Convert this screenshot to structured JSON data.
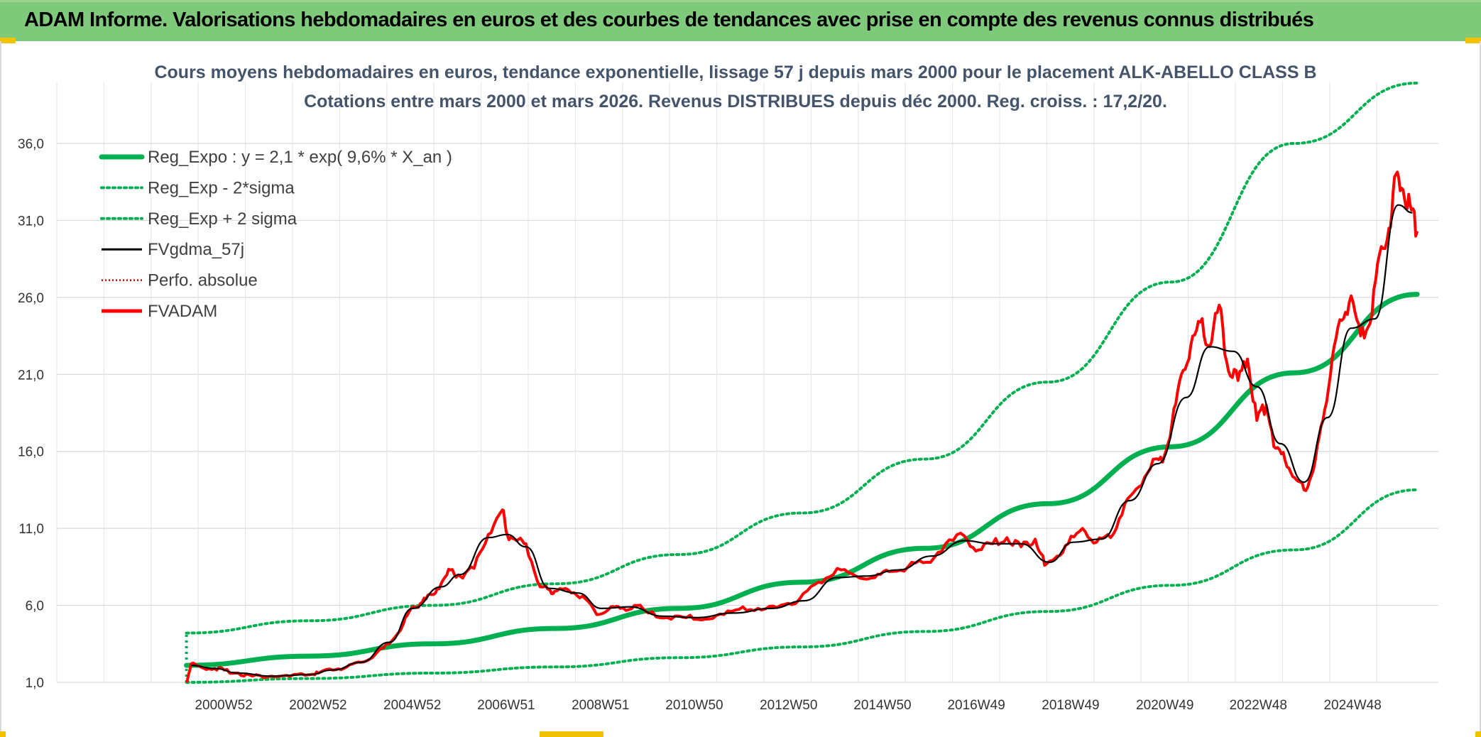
{
  "banner": {
    "title": "ADAM Informe. Valorisations hebdomadaires en euros et des courbes de tendances avec prise en compte des revenus connus distribués"
  },
  "colors": {
    "banner": "#7fc97a",
    "trend": "#00b050",
    "price": "#ff0000",
    "smooth": "#000000",
    "perf": "#c00000"
  },
  "chart_data": {
    "type": "line",
    "title": [
      "Cours moyens hebdomadaires en euros, tendance exponentielle, lissage 57 j depuis mars 2000 pour le placement ALK-ABELLO CLASS B",
      "Cotations entre mars 2000 et mars 2026. Revenus DISTRIBUES depuis déc 2000. Reg. croiss. : 17,2/20."
    ],
    "xlabel": "",
    "ylabel": "",
    "ylim": [
      1,
      40
    ],
    "xlim": [
      1997.45,
      2026.75
    ],
    "y_ticks": [
      "1,0",
      "6,0",
      "11,0",
      "16,0",
      "21,0",
      "26,0",
      "31,0",
      "36,0"
    ],
    "y_tick_values": [
      1,
      6,
      11,
      16,
      21,
      26,
      31,
      36
    ],
    "x_ticks": [
      "2000W52",
      "2002W52",
      "2004W52",
      "2006W51",
      "2008W51",
      "2010W50",
      "2012W50",
      "2014W50",
      "2016W49",
      "2018W49",
      "2020W49",
      "2022W48",
      "2024W48"
    ],
    "x_tick_values": [
      2000.99,
      2002.99,
      2004.99,
      2006.98,
      2008.98,
      2010.97,
      2012.97,
      2014.96,
      2016.95,
      2018.95,
      2020.95,
      2022.93,
      2024.93
    ],
    "grid": true,
    "legend_position": "top-left",
    "legend": [
      {
        "label": "Reg_Expo : y = 2,1 * exp( 9,6% *  X_an )",
        "style": "trend"
      },
      {
        "label": "Reg_Exp - 2*sigma",
        "style": "band"
      },
      {
        "label": "Reg_Exp + 2 sigma",
        "style": "band"
      },
      {
        "label": "FVgdma_57j",
        "style": "smooth"
      },
      {
        "label": "Perfo. absolue",
        "style": "perf"
      },
      {
        "label": "FVADAM",
        "style": "price"
      }
    ],
    "series": [
      {
        "name": "FVADAM",
        "x": [
          2000.2,
          2000.3,
          2000.5,
          2000.8,
          2001.0,
          2001.3,
          2001.6,
          2002.0,
          2002.4,
          2002.8,
          2003.0,
          2003.3,
          2003.6,
          2003.9,
          2004.2,
          2004.5,
          2004.8,
          2005.0,
          2005.2,
          2005.4,
          2005.6,
          2005.8,
          2006.0,
          2006.3,
          2006.6,
          2006.9,
          2007.0,
          2007.2,
          2007.4,
          2007.7,
          2007.9,
          2008.0,
          2008.3,
          2008.6,
          2008.9,
          2009.2,
          2009.4,
          2009.7,
          2010.0,
          2010.4,
          2010.8,
          2011.2,
          2011.6,
          2012.0,
          2012.4,
          2012.8,
          2013.2,
          2013.6,
          2014.0,
          2014.4,
          2014.8,
          2015.1,
          2015.5,
          2015.9,
          2016.3,
          2016.7,
          2017.0,
          2017.3,
          2017.6,
          2017.9,
          2018.2,
          2018.4,
          2018.6,
          2018.9,
          2019.2,
          2019.5,
          2019.8,
          2020.1,
          2020.4,
          2020.7,
          2020.9,
          2021.1,
          2021.3,
          2021.5,
          2021.7,
          2021.9,
          2022.1,
          2022.3,
          2022.5,
          2022.7,
          2022.9,
          2023.1,
          2023.3,
          2023.5,
          2023.7,
          2023.9,
          2024.1,
          2024.3,
          2024.5,
          2024.7,
          2024.9,
          2025.1,
          2025.3,
          2025.5,
          2025.7,
          2025.85,
          2026.0,
          2026.15,
          2026.3
        ],
        "values": [
          1.0,
          2.2,
          2.0,
          1.9,
          1.8,
          1.6,
          1.4,
          1.4,
          1.4,
          1.5,
          1.6,
          1.8,
          2.0,
          2.3,
          2.8,
          3.5,
          4.8,
          5.9,
          6.2,
          6.7,
          7.4,
          8.3,
          7.9,
          8.4,
          10.6,
          12.2,
          10.6,
          10.2,
          10.0,
          7.2,
          7.0,
          6.9,
          7.0,
          6.6,
          5.4,
          5.9,
          5.8,
          6.0,
          5.5,
          5.2,
          5.2,
          5.1,
          5.4,
          5.9,
          5.7,
          6.0,
          6.4,
          7.5,
          8.4,
          7.9,
          7.8,
          8.2,
          8.5,
          8.8,
          10.0,
          10.5,
          9.6,
          10.0,
          10.4,
          9.8,
          10.3,
          8.6,
          9.0,
          10.0,
          11.0,
          10.1,
          10.4,
          12.6,
          13.7,
          15.5,
          15.3,
          17.8,
          21.0,
          22.9,
          24.4,
          22.8,
          25.5,
          21.2,
          20.6,
          22.0,
          18.0,
          19.0,
          16.2,
          15.4,
          14.3,
          13.5,
          14.8,
          18.0,
          22.1,
          24.5,
          26.1,
          23.5,
          24.3,
          28.8,
          30.5,
          34.0,
          33.0,
          32.0,
          30.3
        ]
      },
      {
        "name": "FVgdma_57j",
        "x": [
          2000.3,
          2000.8,
          2001.3,
          2002.0,
          2002.8,
          2003.3,
          2003.9,
          2004.5,
          2005.0,
          2005.6,
          2006.0,
          2006.6,
          2007.0,
          2007.4,
          2007.9,
          2008.5,
          2009.0,
          2009.6,
          2010.3,
          2011.0,
          2011.8,
          2012.6,
          2013.3,
          2014.0,
          2014.6,
          2015.3,
          2016.0,
          2016.7,
          2017.3,
          2017.9,
          2018.5,
          2019.0,
          2019.6,
          2020.2,
          2020.8,
          2021.4,
          2021.9,
          2022.4,
          2022.9,
          2023.4,
          2023.9,
          2024.4,
          2024.9,
          2025.4,
          2025.9,
          2026.2
        ],
        "values": [
          2.1,
          1.9,
          1.6,
          1.4,
          1.5,
          1.8,
          2.3,
          3.6,
          5.8,
          7.2,
          8.0,
          10.4,
          10.6,
          9.8,
          7.1,
          6.8,
          5.8,
          5.9,
          5.3,
          5.2,
          5.5,
          5.8,
          6.3,
          7.8,
          7.9,
          8.3,
          9.2,
          10.2,
          10.0,
          10.0,
          8.8,
          10.1,
          10.3,
          12.8,
          15.2,
          19.5,
          22.8,
          22.5,
          20.2,
          16.5,
          14.0,
          18.2,
          24.0,
          24.6,
          32.0,
          31.5
        ]
      },
      {
        "name": "Reg_Expo : y = 2,1 * exp( 9,6% *  X_an )",
        "formula": {
          "a": 2.1,
          "b": 0.096,
          "x0": 2000.2,
          "x1": 2026.3
        },
        "values": [
          2.1,
          2.7,
          3.5,
          4.5,
          5.8,
          7.5,
          9.7,
          12.6,
          16.3,
          21.1,
          26.2
        ]
      },
      {
        "name": "Reg_Exp - 2*sigma",
        "values": [
          1.0,
          1.25,
          1.6,
          2.0,
          2.6,
          3.3,
          4.3,
          5.6,
          7.3,
          9.6,
          13.5
        ]
      },
      {
        "name": "Reg_Exp + 2 sigma",
        "values": [
          4.2,
          5.0,
          6.0,
          7.4,
          9.3,
          12.0,
          15.5,
          20.5,
          27.0,
          36.0,
          40.0
        ]
      }
    ]
  }
}
